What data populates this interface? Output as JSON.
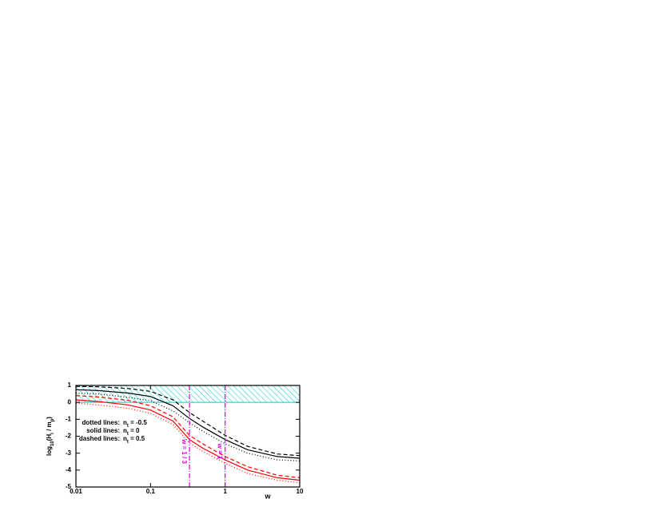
{
  "chart_data": {
    "type": "line",
    "x": [
      0.01,
      0.02,
      0.05,
      0.1,
      0.2,
      0.333,
      0.5,
      1,
      2,
      5,
      10
    ],
    "series": [
      {
        "color": "#000000",
        "dash": "solid",
        "values": [
          0.75,
          0.7,
          0.55,
          0.35,
          -0.2,
          -0.95,
          -1.45,
          -2.2,
          -2.8,
          -3.2,
          -3.3
        ]
      },
      {
        "color": "#000000",
        "dash": "dashed",
        "values": [
          0.95,
          0.92,
          0.82,
          0.65,
          0.15,
          -0.6,
          -1.1,
          -1.95,
          -2.6,
          -3.05,
          -3.15
        ]
      },
      {
        "color": "#000000",
        "dash": "dotted",
        "values": [
          0.55,
          0.5,
          0.3,
          0.1,
          -0.5,
          -1.2,
          -1.7,
          -2.45,
          -3.0,
          -3.4,
          -3.45
        ]
      },
      {
        "color": "#ff0000",
        "dash": "solid",
        "values": [
          0.15,
          0.05,
          -0.15,
          -0.45,
          -1.1,
          -2.2,
          -2.7,
          -3.4,
          -4.0,
          -4.45,
          -4.6
        ]
      },
      {
        "color": "#ff0000",
        "dash": "dashed",
        "values": [
          0.4,
          0.32,
          0.12,
          -0.2,
          -0.85,
          -1.95,
          -2.45,
          -3.2,
          -3.8,
          -4.3,
          -4.45
        ]
      },
      {
        "color": "#ff0000",
        "dash": "dotted",
        "values": [
          -0.05,
          -0.15,
          -0.35,
          -0.65,
          -1.3,
          -2.4,
          -2.9,
          -3.6,
          -4.2,
          -4.6,
          -4.75
        ]
      }
    ],
    "xscale": "log",
    "xlim": [
      0.01,
      10
    ],
    "xticks": [
      0.01,
      0.1,
      1,
      10
    ],
    "ylim": [
      -5,
      1
    ],
    "yticks": [
      -5,
      -4,
      -3,
      -2,
      -1,
      0,
      1
    ],
    "xlabel": "w",
    "ylabel": [
      "log",
      "10",
      "(H",
      "i",
      " / m",
      "p",
      ")"
    ],
    "band": {
      "ylim": [
        0,
        1
      ],
      "color": "#00cccc"
    },
    "vlines": [
      {
        "x": 0.333,
        "label": "w = 1 / 3",
        "color": "#dd00dd"
      },
      {
        "x": 1,
        "label": "w = 1",
        "color": "#dd00dd"
      }
    ],
    "legend": [
      {
        "label": "dotted lines:",
        "param": [
          "n",
          "t",
          " = -0.5"
        ]
      },
      {
        "label": "solid lines:",
        "param": [
          "n",
          "t",
          " = 0"
        ]
      },
      {
        "label": "dashed lines:",
        "param": [
          "n",
          "t",
          " = 0.5"
        ]
      }
    ]
  }
}
